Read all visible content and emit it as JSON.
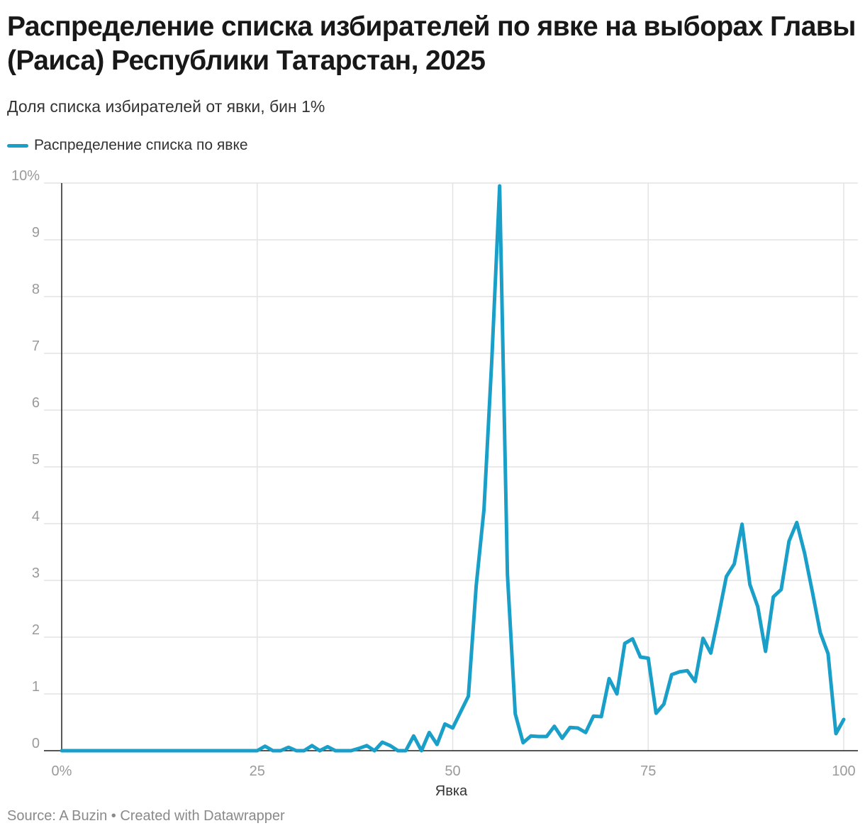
{
  "title": "Распределение списка избирателей по явке на выборах Главы (Раиса) Республики Татарстан, 2025",
  "subtitle": "Доля списка избирателей от явки, бин 1%",
  "footer": "Source: A Buzin • Created with Datawrapper",
  "colors": {
    "line": "#1a9fc9",
    "grid": "#e3e3e3",
    "axis": "#222222"
  },
  "chart_data": {
    "type": "line",
    "xlabel": "Явка",
    "ylabel": "",
    "xlim": [
      0,
      100
    ],
    "ylim": [
      0,
      10
    ],
    "x_ticks": [
      0,
      25,
      50,
      75,
      100
    ],
    "x_tick_labels": [
      "0%",
      "25",
      "50",
      "75",
      "100"
    ],
    "y_ticks": [
      0,
      1,
      2,
      3,
      4,
      5,
      6,
      7,
      8,
      9,
      10
    ],
    "y_tick_labels": [
      "0",
      "1",
      "2",
      "3",
      "4",
      "5",
      "6",
      "7",
      "8",
      "9",
      "10%"
    ],
    "grid": true,
    "legend_position": "top-left",
    "series": [
      {
        "name": "Распределение списка по явке",
        "x": [
          0,
          1,
          2,
          3,
          4,
          5,
          6,
          7,
          8,
          9,
          10,
          11,
          12,
          13,
          14,
          15,
          16,
          17,
          18,
          19,
          20,
          21,
          22,
          23,
          24,
          25,
          26,
          27,
          28,
          29,
          30,
          31,
          32,
          33,
          34,
          35,
          36,
          37,
          38,
          39,
          40,
          41,
          42,
          43,
          44,
          45,
          46,
          47,
          48,
          49,
          50,
          51,
          52,
          53,
          54,
          55,
          56,
          57,
          58,
          59,
          60,
          61,
          62,
          63,
          64,
          65,
          66,
          67,
          68,
          69,
          70,
          71,
          72,
          73,
          74,
          75,
          76,
          77,
          78,
          79,
          80,
          81,
          82,
          83,
          84,
          85,
          86,
          87,
          88,
          89,
          90,
          91,
          92,
          93,
          94,
          95,
          96,
          97,
          98,
          99,
          100
        ],
        "values": [
          0,
          0,
          0,
          0,
          0,
          0,
          0,
          0,
          0,
          0,
          0,
          0,
          0,
          0,
          0,
          0,
          0,
          0,
          0,
          0,
          0,
          0,
          0,
          0,
          0,
          0,
          0.08,
          0,
          0,
          0.06,
          0,
          0,
          0.09,
          0,
          0.07,
          0,
          0,
          0,
          0.04,
          0.09,
          0,
          0.15,
          0.09,
          0,
          0,
          0.26,
          0,
          0.32,
          0.11,
          0.47,
          0.4,
          0.68,
          0.96,
          2.9,
          4.25,
          6.9,
          9.95,
          3.1,
          0.65,
          0.14,
          0.26,
          0.25,
          0.25,
          0.43,
          0.22,
          0.41,
          0.4,
          0.32,
          0.61,
          0.6,
          1.27,
          1.0,
          1.89,
          1.97,
          1.65,
          1.63,
          0.66,
          0.82,
          1.34,
          1.39,
          1.41,
          1.22,
          1.98,
          1.72,
          2.38,
          3.07,
          3.29,
          3.99,
          2.93,
          2.54,
          1.75,
          2.71,
          2.84,
          3.69,
          4.02,
          3.48,
          2.79,
          2.08,
          1.71,
          0.3,
          0.55
        ]
      }
    ]
  }
}
